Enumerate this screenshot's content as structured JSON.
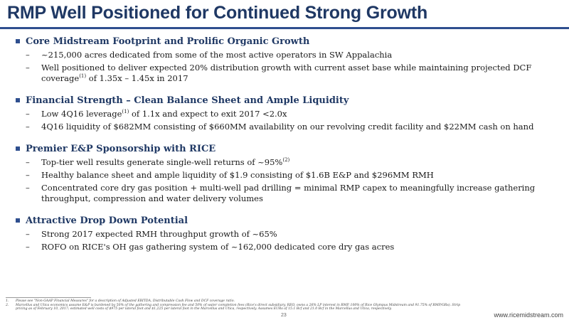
{
  "title": "RMP Well Positioned for Continued Strong Growth",
  "sections": [
    {
      "heading": "Core Midstream Footprint and Prolific Organic Growth",
      "items": [
        {
          "text": "~215,000 acres dedicated from some of the most active operators in SW Appalachia"
        },
        {
          "text_a": "Well positioned to deliver expected 20% distribution growth with current asset base while maintaining projected DCF coverage",
          "sup": "(1)",
          "text_b": " of 1.35x – 1.45x in 2017"
        }
      ]
    },
    {
      "heading": "Financial Strength – Clean Balance Sheet and Ample Liquidity",
      "items": [
        {
          "text_a": "Low 4Q16 leverage",
          "sup": "(1)",
          "text_b": " of 1.1x and expect to exit 2017 <2.0x"
        },
        {
          "text": "4Q16 liquidity of $682MM consisting of $660MM availability on our revolving credit facility and $22MM cash on hand"
        }
      ]
    },
    {
      "heading": "Premier E&P Sponsorship with RICE",
      "items": [
        {
          "text_a": "Top-tier well results generate single-well returns of ~95%",
          "sup": "(2)",
          "text_b": ""
        },
        {
          "text": "Healthy balance sheet and ample liquidity of $1.9 consisting of $1.6B E&P and $296MM RMH"
        },
        {
          "text": "Concentrated core dry gas position + multi-well pad drilling = minimal RMP capex to meaningfully increase gathering throughput, compression and water delivery volumes"
        }
      ]
    },
    {
      "heading": "Attractive Drop Down Potential",
      "items": [
        {
          "text": "Strong 2017 expected RMH throughput growth of ~65%"
        },
        {
          "text": "ROFO on RICE's OH gas gathering system of ~162,000 dedicated core dry gas acres"
        }
      ]
    }
  ],
  "footnotes": [
    {
      "num": "1.",
      "text": "Please see \"Non-GAAP Financial Measures\" for a description of Adjusted EBITDA, Distributable Cash Flow and DCF coverage ratio."
    },
    {
      "num": "2.",
      "text": "Marcellus and Utica economics assume E&P is burdened by 50% of the gathering and compression fee and 50% of water completion fees (Rice's direct subsidiary, REO, owns a 26% LP interest in RMP, 100% of Rice Olympus Midstream and 91.75% of RMP/GRs). Strip pricing as of February 10, 2017; estimated well costs of $975 per lateral foot and $1,225 per lateral foot in the Marcellus and Utica, respectively. Assumes EURs of 15.1 Bcf and 21.0 Bcf in the Marcellus and Utica, respectively."
    }
  ],
  "page_number": "23",
  "website": "www.ricemidstream.com"
}
